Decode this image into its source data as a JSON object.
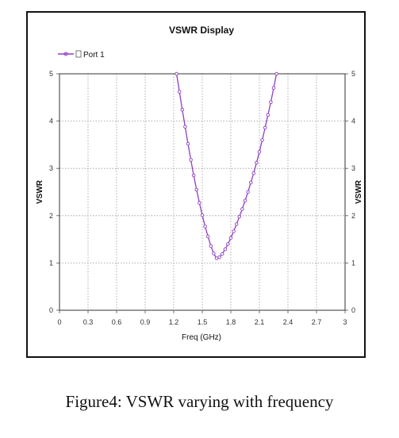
{
  "chart_data": {
    "type": "line",
    "title": "VSWR Display",
    "xlabel": "Freq (GHz)",
    "ylabel": "VSWR",
    "ylabel_right": "VSWR",
    "xlim": [
      0,
      3
    ],
    "ylim": [
      0,
      5
    ],
    "xticks": [
      "0",
      "0.3",
      "0.6",
      "0.9",
      "1.2",
      "1.5",
      "1.8",
      "2.1",
      "2.4",
      "2.7",
      "3"
    ],
    "yticks": [
      "0",
      "1",
      "2",
      "3",
      "4",
      "5"
    ],
    "grid": true,
    "legend_position": "top-left",
    "series": [
      {
        "name": "Port 1",
        "color": "#8e3fbf",
        "x": [
          1.23,
          1.26,
          1.29,
          1.32,
          1.35,
          1.38,
          1.41,
          1.44,
          1.47,
          1.5,
          1.53,
          1.56,
          1.59,
          1.62,
          1.65,
          1.68,
          1.71,
          1.74,
          1.77,
          1.8,
          1.83,
          1.86,
          1.89,
          1.92,
          1.95,
          1.98,
          2.01,
          2.04,
          2.07,
          2.1,
          2.13,
          2.16,
          2.19,
          2.22,
          2.25,
          2.28
        ],
        "y": [
          5.0,
          4.62,
          4.24,
          3.88,
          3.52,
          3.18,
          2.85,
          2.55,
          2.27,
          2.01,
          1.77,
          1.56,
          1.36,
          1.2,
          1.1,
          1.12,
          1.19,
          1.29,
          1.4,
          1.53,
          1.67,
          1.82,
          1.98,
          2.14,
          2.32,
          2.5,
          2.7,
          2.9,
          3.12,
          3.35,
          3.6,
          3.86,
          4.13,
          4.4,
          4.7,
          5.0
        ]
      }
    ]
  },
  "caption": "Figure4: VSWR varying with frequency"
}
